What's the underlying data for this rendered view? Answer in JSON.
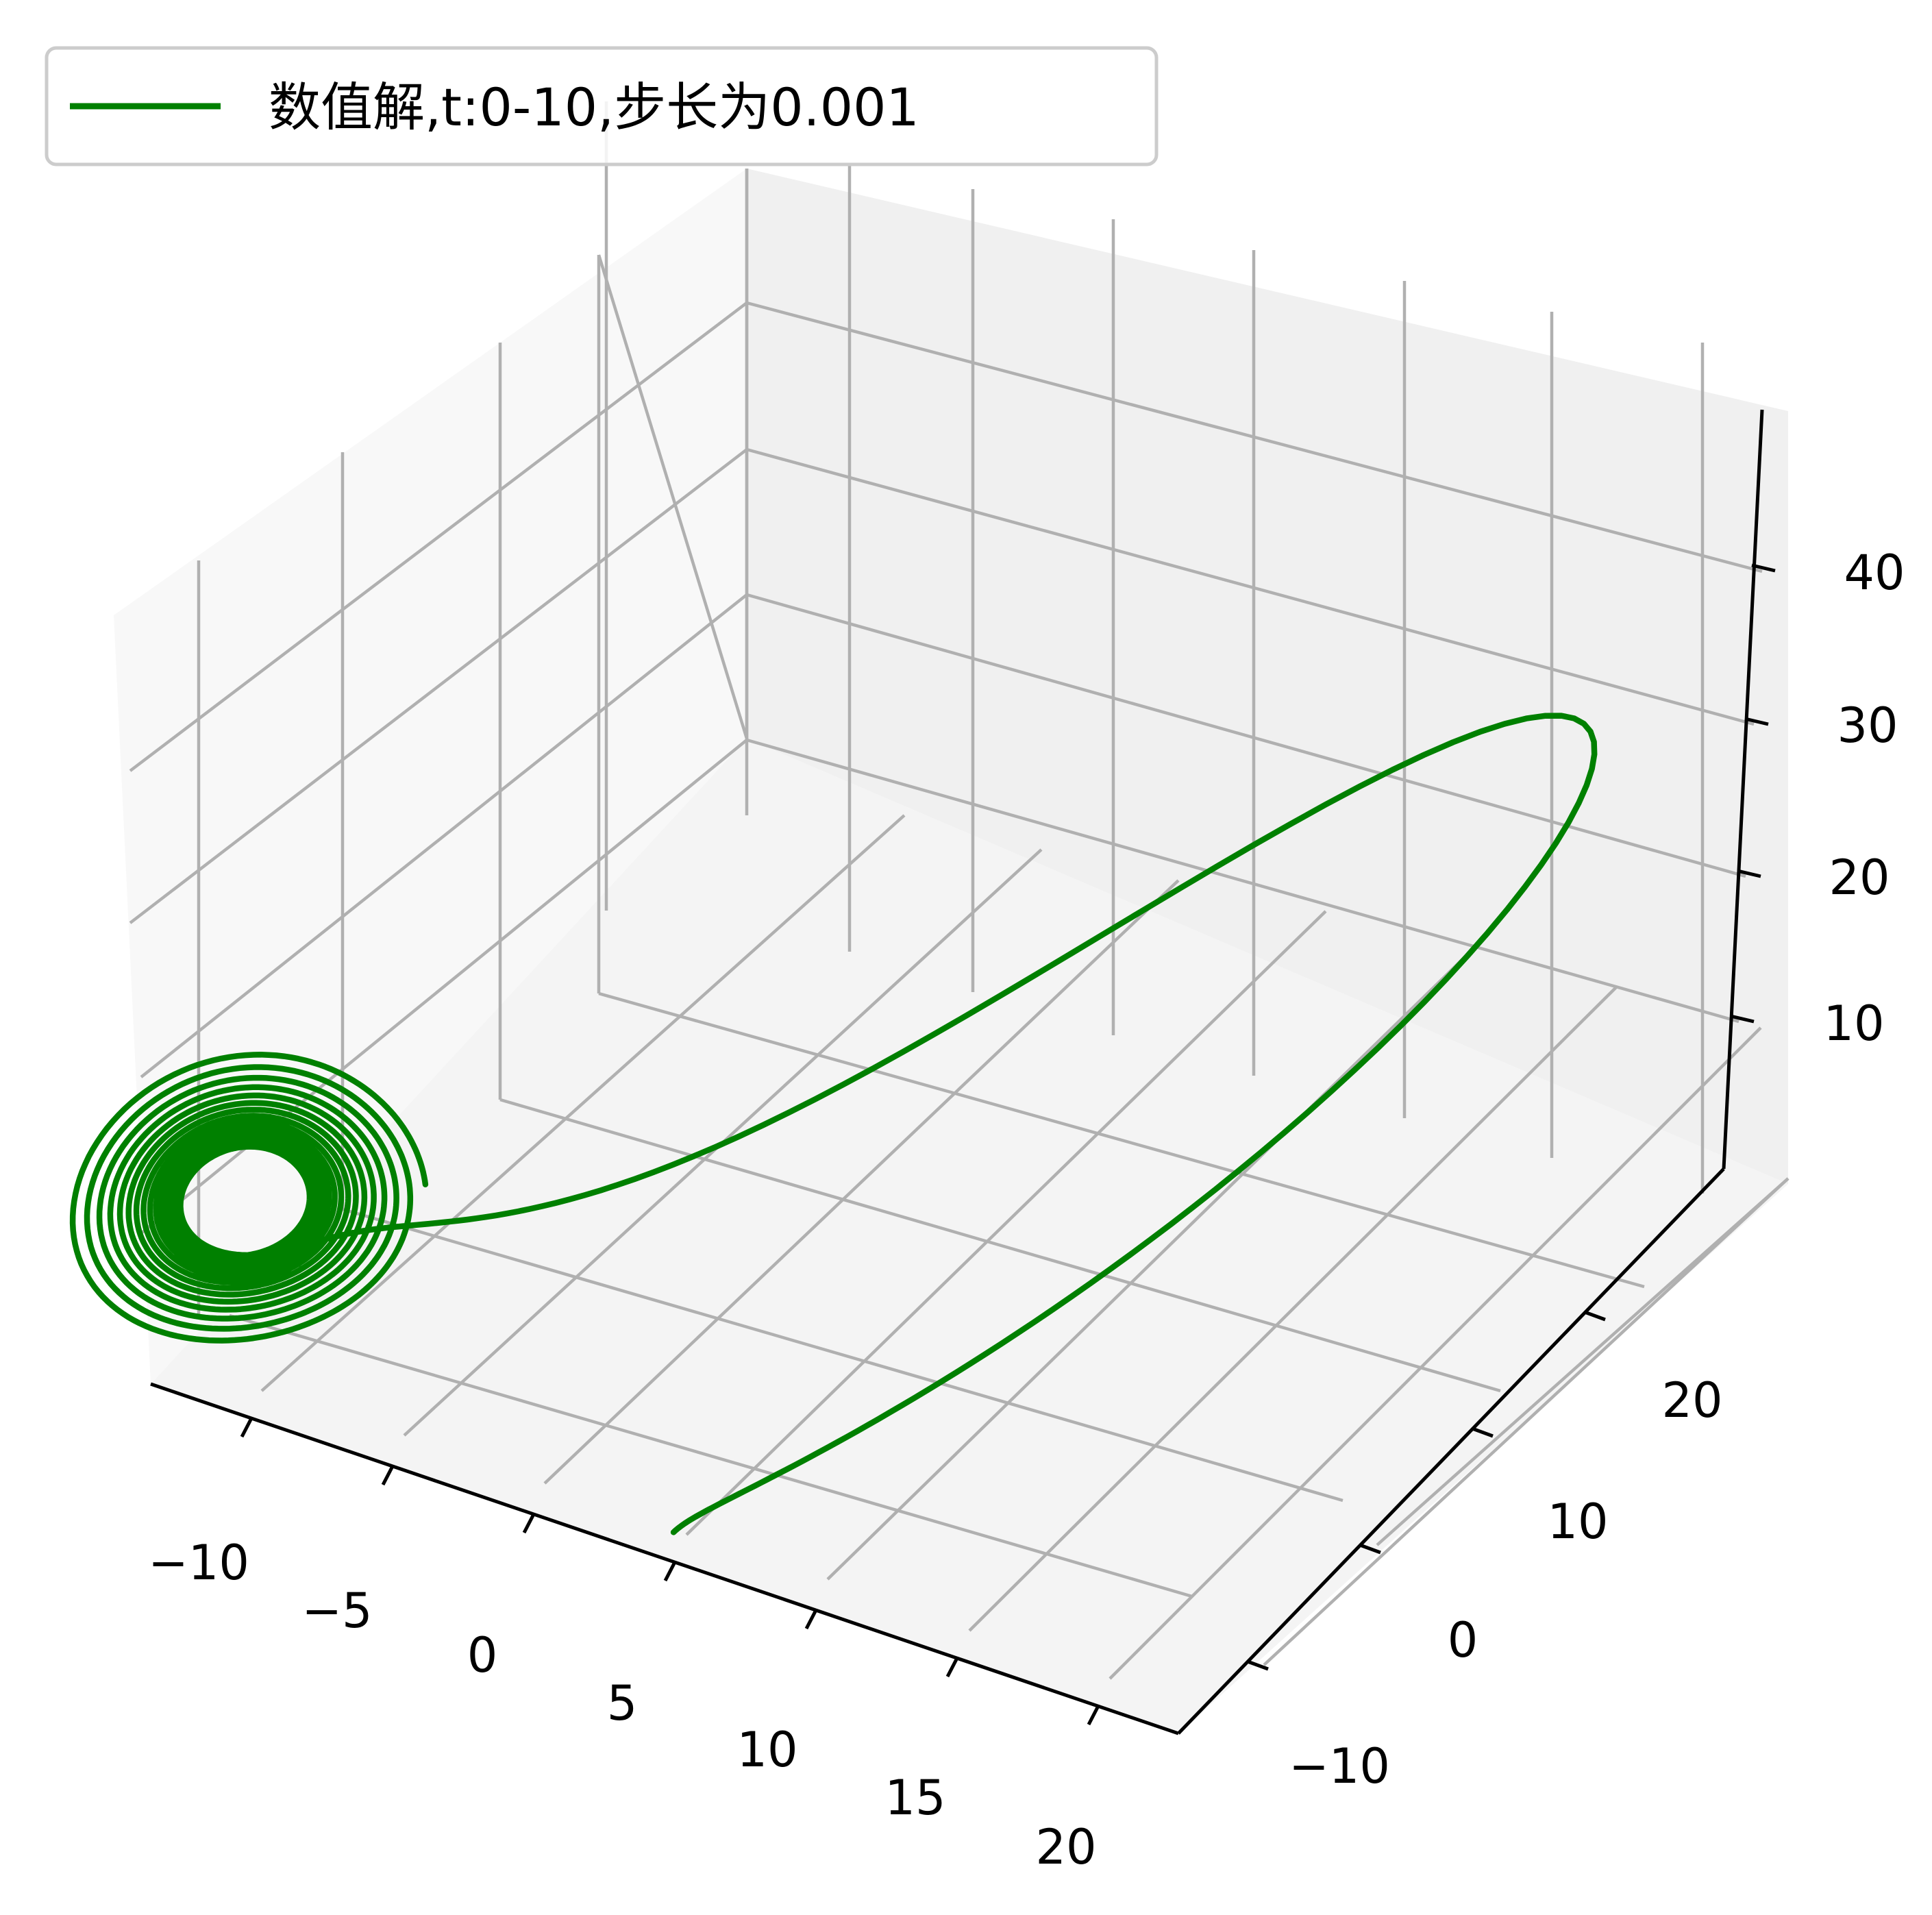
{
  "chart_data": {
    "type": "line",
    "projection": "3d",
    "title": "",
    "xlabel": "",
    "ylabel": "",
    "zlabel": "",
    "grid": true,
    "legend_position": "top-left",
    "xlim": [
      -13.5,
      23.5
    ],
    "ylim": [
      -15,
      29
    ],
    "zlim": [
      0,
      48
    ],
    "x_ticks": [
      "−10",
      "−5",
      "0",
      "5",
      "10",
      "15",
      "20"
    ],
    "y_ticks": [
      "−10",
      "0",
      "10",
      "20"
    ],
    "z_ticks": [
      "10",
      "20",
      "30",
      "40"
    ],
    "series": [
      {
        "name": "数值解,t:0-10,步长为0.001",
        "color": "#008000",
        "initial_point": [
          1,
          1,
          1
        ],
        "x": [
          1,
          14,
          20.5,
          18,
          11,
          5,
          0,
          -4,
          -7,
          -8.5
        ],
        "y": [
          1,
          12,
          21,
          25,
          20,
          12,
          5,
          -1,
          -5,
          -8
        ],
        "z": [
          1,
          10,
          25,
          38,
          44,
          40,
          33,
          27,
          24,
          24
        ]
      }
    ]
  }
}
